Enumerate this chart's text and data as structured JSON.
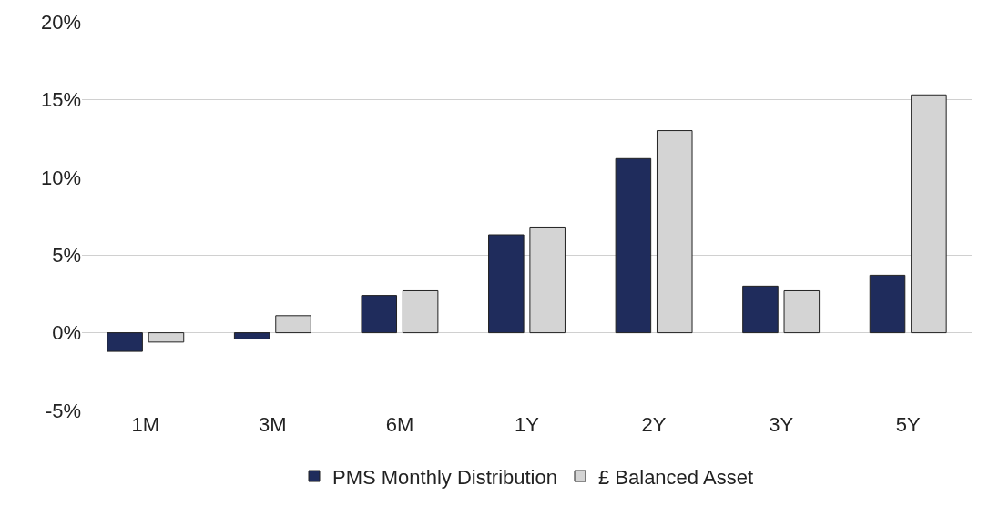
{
  "chart_data": {
    "type": "bar",
    "categories": [
      "1M",
      "3M",
      "6M",
      "1Y",
      "2Y",
      "3Y",
      "5Y"
    ],
    "series": [
      {
        "name": "PMS Monthly Distribution",
        "color": "#1f2c5c",
        "values": [
          -1.2,
          -0.4,
          2.4,
          6.3,
          11.2,
          3.0,
          3.7
        ]
      },
      {
        "name": "£ Balanced Asset",
        "color": "#d4d4d4",
        "values": [
          -0.6,
          1.1,
          2.7,
          6.8,
          13.0,
          2.7,
          15.3
        ]
      }
    ],
    "ylim": [
      -5,
      20
    ],
    "yticks": [
      {
        "value": -5,
        "label": "-5%"
      },
      {
        "value": 0,
        "label": "0%"
      },
      {
        "value": 5,
        "label": "5%"
      },
      {
        "value": 10,
        "label": "10%"
      },
      {
        "value": 15,
        "label": "15%"
      },
      {
        "value": 20,
        "label": "20%"
      }
    ],
    "grid": "y",
    "legend": "bottom"
  }
}
